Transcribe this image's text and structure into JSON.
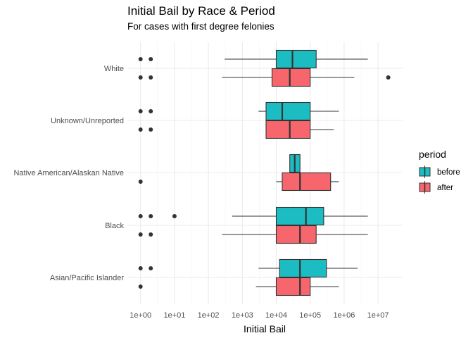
{
  "chart_data": {
    "type": "boxplot",
    "orientation": "horizontal",
    "title": "Initial Bail by Race & Period",
    "subtitle": "For cases with first degree felonies",
    "xlabel": "Initial Bail",
    "ylabel": "",
    "x_scale": "log10",
    "xlim": [
      1,
      10000000
    ],
    "x_ticks": [
      "1e+00",
      "1e+01",
      "1e+02",
      "1e+03",
      "1e+04",
      "1e+05",
      "1e+06",
      "1e+07"
    ],
    "categories": [
      "White",
      "Unknown/Unreported",
      "Native American/Alaskan Native",
      "Black",
      "Asian/Pacific Islander"
    ],
    "grid": true,
    "legend": {
      "title": "period",
      "position": "right",
      "entries": [
        {
          "label": "before",
          "color": "#1CBDC2"
        },
        {
          "label": "after",
          "color": "#F8666D"
        }
      ]
    },
    "series": [
      {
        "name": "before",
        "color": "#1CBDC2",
        "boxes": [
          {
            "category": "White",
            "whisker_low": 300,
            "q1": 10000,
            "median": 30000,
            "q3": 150000,
            "whisker_high": 5000000,
            "outliers": [
              1,
              2
            ]
          },
          {
            "category": "Unknown/Unreported",
            "whisker_low": 3000,
            "q1": 5000,
            "median": 15000,
            "q3": 100000,
            "whisker_high": 700000,
            "outliers": [
              1,
              2
            ]
          },
          {
            "category": "Native American/Alaskan Native",
            "whisker_low": 25000,
            "q1": 25000,
            "median": 35000,
            "q3": 50000,
            "whisker_high": 50000,
            "outliers": []
          },
          {
            "category": "Black",
            "whisker_low": 500,
            "q1": 10000,
            "median": 75000,
            "q3": 250000,
            "whisker_high": 5000000,
            "outliers": [
              1,
              2,
              10
            ]
          },
          {
            "category": "Asian/Pacific Islander",
            "whisker_low": 3000,
            "q1": 12500,
            "median": 50000,
            "q3": 300000,
            "whisker_high": 2500000,
            "outliers": [
              1,
              2
            ]
          }
        ]
      },
      {
        "name": "after",
        "color": "#F8666D",
        "boxes": [
          {
            "category": "White",
            "whisker_low": 250,
            "q1": 7500,
            "median": 25000,
            "q3": 100000,
            "whisker_high": 2000000,
            "outliers": [
              1,
              2,
              20000000
            ]
          },
          {
            "category": "Unknown/Unreported",
            "whisker_low": 5000,
            "q1": 5000,
            "median": 25000,
            "q3": 100000,
            "whisker_high": 500000,
            "outliers": [
              1,
              2
            ]
          },
          {
            "category": "Native American/Alaskan Native",
            "whisker_low": 10000,
            "q1": 15000,
            "median": 50000,
            "q3": 400000,
            "whisker_high": 700000,
            "outliers": [
              1
            ]
          },
          {
            "category": "Black",
            "whisker_low": 250,
            "q1": 10000,
            "median": 50000,
            "q3": 150000,
            "whisker_high": 5000000,
            "outliers": [
              1,
              2
            ]
          },
          {
            "category": "Asian/Pacific Islander",
            "whisker_low": 2500,
            "q1": 10000,
            "median": 50000,
            "q3": 100000,
            "whisker_high": 700000,
            "outliers": [
              1
            ]
          }
        ]
      }
    ]
  }
}
